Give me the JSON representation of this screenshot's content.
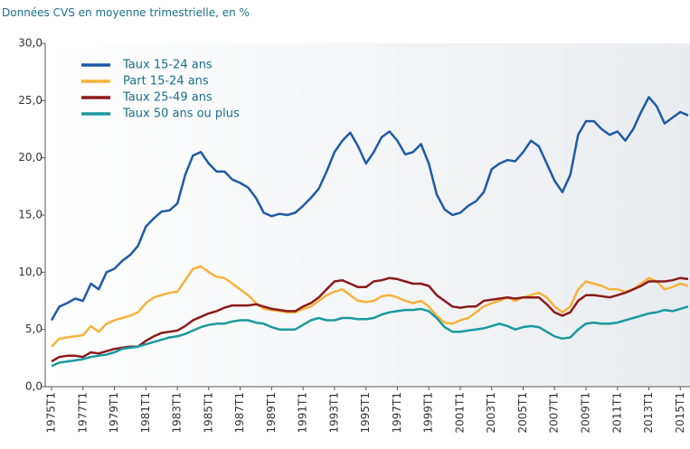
{
  "chart_data": {
    "type": "line",
    "title": "Données CVS en moyenne trimestrielle, en %",
    "categories": [
      "1975T1",
      null,
      null,
      null,
      "1977T1",
      null,
      null,
      null,
      "1979T1",
      null,
      null,
      null,
      "1981T1",
      null,
      null,
      null,
      "1983T1",
      null,
      null,
      null,
      "1985T1",
      null,
      null,
      null,
      "1987T1",
      null,
      null,
      null,
      "1989T1",
      null,
      null,
      null,
      "1991T1",
      null,
      null,
      null,
      "1993T1",
      null,
      null,
      null,
      "1995T1",
      null,
      null,
      null,
      "1997T1",
      null,
      null,
      null,
      "1999T1",
      null,
      null,
      null,
      "2001T1",
      null,
      null,
      null,
      "2003T1",
      null,
      null,
      null,
      "2005T1",
      null,
      null,
      null,
      "2007T1",
      null,
      null,
      null,
      "2009T1",
      null,
      null,
      null,
      "2011T1",
      null,
      null,
      null,
      "2013T1",
      null,
      null,
      null,
      "2015T1",
      null
    ],
    "series": [
      {
        "name": "Taux 15-24 ans",
        "color": "#1f5aa6",
        "values": [
          5.8,
          7.0,
          7.3,
          7.7,
          7.5,
          9.0,
          8.5,
          10.0,
          10.3,
          11.0,
          11.5,
          12.3,
          14.0,
          14.7,
          15.3,
          15.4,
          16.0,
          18.5,
          20.2,
          20.5,
          19.5,
          18.8,
          18.8,
          18.1,
          17.8,
          17.4,
          16.5,
          15.2,
          14.9,
          15.1,
          15.0,
          15.2,
          15.8,
          16.5,
          17.3,
          18.8,
          20.5,
          21.5,
          22.2,
          21.0,
          19.5,
          20.5,
          21.8,
          22.3,
          21.5,
          20.3,
          20.5,
          21.2,
          19.5,
          16.8,
          15.5,
          15.0,
          15.2,
          15.8,
          16.2,
          17.0,
          19.0,
          19.5,
          19.8,
          19.7,
          20.5,
          21.5,
          21.0,
          19.5,
          18.0,
          17.0,
          18.5,
          22.0,
          23.2,
          23.2,
          22.5,
          22.0,
          22.3,
          21.5,
          22.5,
          24.0,
          25.3,
          24.5,
          23.0,
          23.5,
          24.0,
          23.7
        ]
      },
      {
        "name": "Part 15-24 ans",
        "color": "#f7b23b",
        "values": [
          3.5,
          4.2,
          4.3,
          4.4,
          4.5,
          5.3,
          4.8,
          5.5,
          5.8,
          6.0,
          6.2,
          6.5,
          7.3,
          7.8,
          8.0,
          8.2,
          8.3,
          9.3,
          10.3,
          10.5,
          10.0,
          9.6,
          9.5,
          9.0,
          8.5,
          8.0,
          7.3,
          6.8,
          6.7,
          6.6,
          6.5,
          6.5,
          6.8,
          7.0,
          7.5,
          8.0,
          8.3,
          8.5,
          8.0,
          7.5,
          7.4,
          7.5,
          7.9,
          8.0,
          7.8,
          7.5,
          7.3,
          7.5,
          7.0,
          6.2,
          5.6,
          5.5,
          5.8,
          6.0,
          6.5,
          7.0,
          7.3,
          7.5,
          7.8,
          7.5,
          7.8,
          8.0,
          8.2,
          7.8,
          7.0,
          6.5,
          7.0,
          8.5,
          9.2,
          9.0,
          8.8,
          8.5,
          8.5,
          8.3,
          8.5,
          9.0,
          9.5,
          9.2,
          8.5,
          8.7,
          9.0,
          8.8
        ]
      },
      {
        "name": "Taux 25-49 ans",
        "color": "#8b1a1a",
        "values": [
          2.2,
          2.6,
          2.7,
          2.7,
          2.6,
          3.0,
          2.9,
          3.1,
          3.3,
          3.4,
          3.5,
          3.5,
          4.0,
          4.4,
          4.7,
          4.8,
          4.9,
          5.3,
          5.8,
          6.1,
          6.4,
          6.6,
          6.9,
          7.1,
          7.1,
          7.1,
          7.2,
          7.0,
          6.8,
          6.7,
          6.6,
          6.6,
          7.0,
          7.3,
          7.8,
          8.5,
          9.2,
          9.3,
          9.0,
          8.7,
          8.7,
          9.2,
          9.3,
          9.5,
          9.4,
          9.2,
          9.0,
          9.0,
          8.8,
          8.0,
          7.5,
          7.0,
          6.9,
          7.0,
          7.0,
          7.5,
          7.6,
          7.7,
          7.8,
          7.7,
          7.8,
          7.8,
          7.8,
          7.2,
          6.5,
          6.2,
          6.5,
          7.5,
          8.0,
          8.0,
          7.9,
          7.8,
          8.0,
          8.2,
          8.5,
          8.8,
          9.2,
          9.2,
          9.2,
          9.3,
          9.5,
          9.4
        ]
      },
      {
        "name": "Taux 50 ans ou plus",
        "color": "#1a9aa0",
        "values": [
          1.8,
          2.1,
          2.2,
          2.3,
          2.4,
          2.6,
          2.7,
          2.8,
          3.0,
          3.3,
          3.4,
          3.5,
          3.7,
          3.9,
          4.1,
          4.3,
          4.4,
          4.6,
          4.9,
          5.2,
          5.4,
          5.5,
          5.5,
          5.7,
          5.8,
          5.8,
          5.6,
          5.5,
          5.2,
          5.0,
          5.0,
          5.0,
          5.4,
          5.8,
          6.0,
          5.8,
          5.8,
          6.0,
          6.0,
          5.9,
          5.9,
          6.0,
          6.3,
          6.5,
          6.6,
          6.7,
          6.7,
          6.8,
          6.6,
          6.0,
          5.2,
          4.8,
          4.8,
          4.9,
          5.0,
          5.1,
          5.3,
          5.5,
          5.3,
          5.0,
          5.2,
          5.3,
          5.2,
          4.8,
          4.4,
          4.2,
          4.3,
          5.0,
          5.5,
          5.6,
          5.5,
          5.5,
          5.6,
          5.8,
          6.0,
          6.2,
          6.4,
          6.5,
          6.7,
          6.6,
          6.8,
          7.0
        ]
      }
    ],
    "ylim": [
      0,
      30
    ],
    "yticks": [
      {
        "value": 0,
        "label": "0,0"
      },
      {
        "value": 5,
        "label": "5,0"
      },
      {
        "value": 10,
        "label": "10,0"
      },
      {
        "value": 15,
        "label": "15,0"
      },
      {
        "value": 20,
        "label": "20,0"
      },
      {
        "value": 25,
        "label": "25,0"
      },
      {
        "value": 30,
        "label": "30,0"
      }
    ],
    "legend": "upper left"
  }
}
